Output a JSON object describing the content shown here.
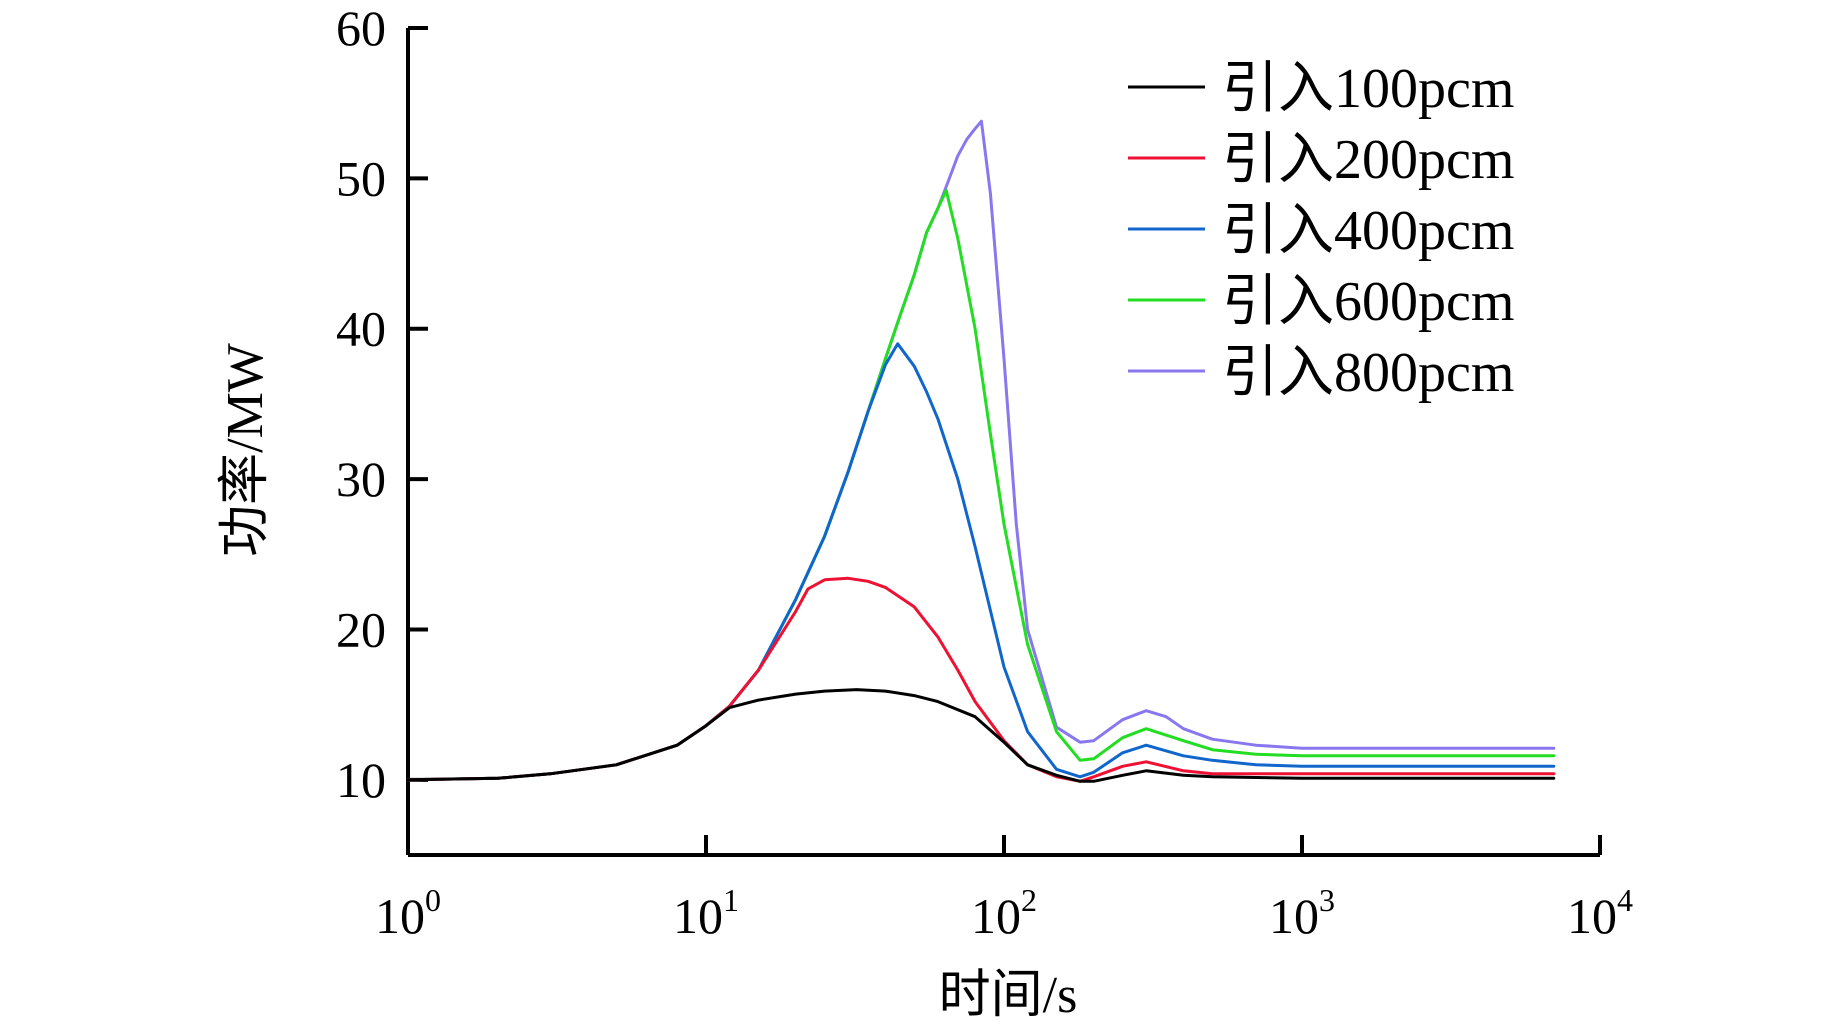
{
  "chart_data": {
    "type": "line",
    "xlabel": "时间/s",
    "ylabel": "功率/MW",
    "xscale": "log",
    "xlim": [
      1,
      10000
    ],
    "ylim": [
      5,
      60
    ],
    "x_ticks": [
      {
        "value": 1,
        "base": "10",
        "exp": "0"
      },
      {
        "value": 10,
        "base": "10",
        "exp": "1"
      },
      {
        "value": 100,
        "base": "10",
        "exp": "2"
      },
      {
        "value": 1000,
        "base": "10",
        "exp": "3"
      },
      {
        "value": 10000,
        "base": "10",
        "exp": "4"
      }
    ],
    "y_ticks": [
      10,
      20,
      30,
      40,
      50,
      60
    ],
    "grid": false,
    "legend_position": "top-right",
    "series": [
      {
        "name": "引入100pcm",
        "color": "#000000",
        "x": [
          1,
          2,
          3,
          5,
          8,
          10,
          12,
          15,
          20,
          25,
          32,
          40,
          50,
          60,
          80,
          100,
          120,
          150,
          180,
          200,
          250,
          300,
          400,
          500,
          1000,
          3000,
          7000
        ],
        "y": [
          10,
          10.1,
          10.4,
          11,
          12.3,
          13.6,
          14.8,
          15.3,
          15.7,
          15.9,
          16,
          15.9,
          15.6,
          15.2,
          14.2,
          12.5,
          11,
          10.3,
          9.9,
          9.9,
          10.3,
          10.6,
          10.3,
          10.2,
          10.1,
          10.1,
          10.1
        ]
      },
      {
        "name": "引入200pcm",
        "color": "#ee1133",
        "x": [
          1,
          2,
          3,
          5,
          8,
          10,
          12,
          15,
          20,
          22,
          25,
          30,
          35,
          40,
          50,
          60,
          70,
          80,
          100,
          120,
          150,
          180,
          200,
          250,
          300,
          400,
          500,
          1000,
          3000,
          7000
        ],
        "y": [
          10,
          10.1,
          10.4,
          11,
          12.3,
          13.6,
          14.9,
          17.3,
          21.2,
          22.7,
          23.3,
          23.4,
          23.2,
          22.8,
          21.5,
          19.5,
          17.3,
          15.2,
          12.6,
          11,
          10.2,
          9.9,
          10.2,
          10.9,
          11.2,
          10.6,
          10.4,
          10.4,
          10.4,
          10.4
        ]
      },
      {
        "name": "引入400pcm",
        "color": "#1166cc",
        "x": [
          1,
          2,
          3,
          5,
          8,
          10,
          12,
          15,
          20,
          25,
          30,
          35,
          40,
          44,
          50,
          55,
          60,
          70,
          80,
          100,
          120,
          150,
          180,
          200,
          250,
          300,
          400,
          500,
          700,
          1000,
          3000,
          7000
        ],
        "y": [
          10,
          10.1,
          10.4,
          11,
          12.3,
          13.6,
          14.9,
          17.3,
          22,
          26.2,
          30.5,
          34.5,
          37.6,
          39,
          37.5,
          35.8,
          34,
          30,
          25.5,
          17.5,
          13.2,
          10.7,
          10.2,
          10.5,
          11.8,
          12.3,
          11.6,
          11.3,
          11,
          10.9,
          10.9,
          10.9
        ]
      },
      {
        "name": "引入600pcm",
        "color": "#22dd22",
        "x": [
          1,
          2,
          3,
          5,
          8,
          10,
          12,
          15,
          20,
          25,
          30,
          35,
          40,
          45,
          50,
          55,
          60,
          64,
          70,
          80,
          90,
          100,
          120,
          150,
          180,
          200,
          250,
          300,
          400,
          500,
          700,
          1000,
          3000,
          7000
        ],
        "y": [
          10,
          10.1,
          10.4,
          11,
          12.3,
          13.6,
          14.9,
          17.3,
          22,
          26.2,
          30.5,
          34.5,
          38,
          41,
          43.6,
          46.4,
          48,
          49.2,
          46,
          40,
          33,
          27,
          19,
          13.2,
          11.3,
          11.4,
          12.8,
          13.4,
          12.6,
          12,
          11.7,
          11.6,
          11.6,
          11.6
        ]
      },
      {
        "name": "引入800pcm",
        "color": "#8877ee",
        "x": [
          1,
          2,
          3,
          5,
          8,
          10,
          12,
          15,
          20,
          25,
          30,
          35,
          40,
          45,
          50,
          55,
          60,
          65,
          70,
          75,
          80,
          84,
          90,
          100,
          110,
          120,
          150,
          180,
          200,
          250,
          300,
          350,
          400,
          500,
          700,
          1000,
          3000,
          7000
        ],
        "y": [
          10,
          10.1,
          10.4,
          11,
          12.3,
          13.6,
          14.9,
          17.3,
          22,
          26.2,
          30.5,
          34.5,
          38,
          41,
          43.6,
          46.4,
          48,
          49.8,
          51.5,
          52.6,
          53.3,
          53.8,
          49,
          38,
          27,
          20,
          13.5,
          12.5,
          12.6,
          14,
          14.6,
          14.2,
          13.4,
          12.7,
          12.3,
          12.1,
          12.1,
          12.1
        ]
      }
    ]
  }
}
